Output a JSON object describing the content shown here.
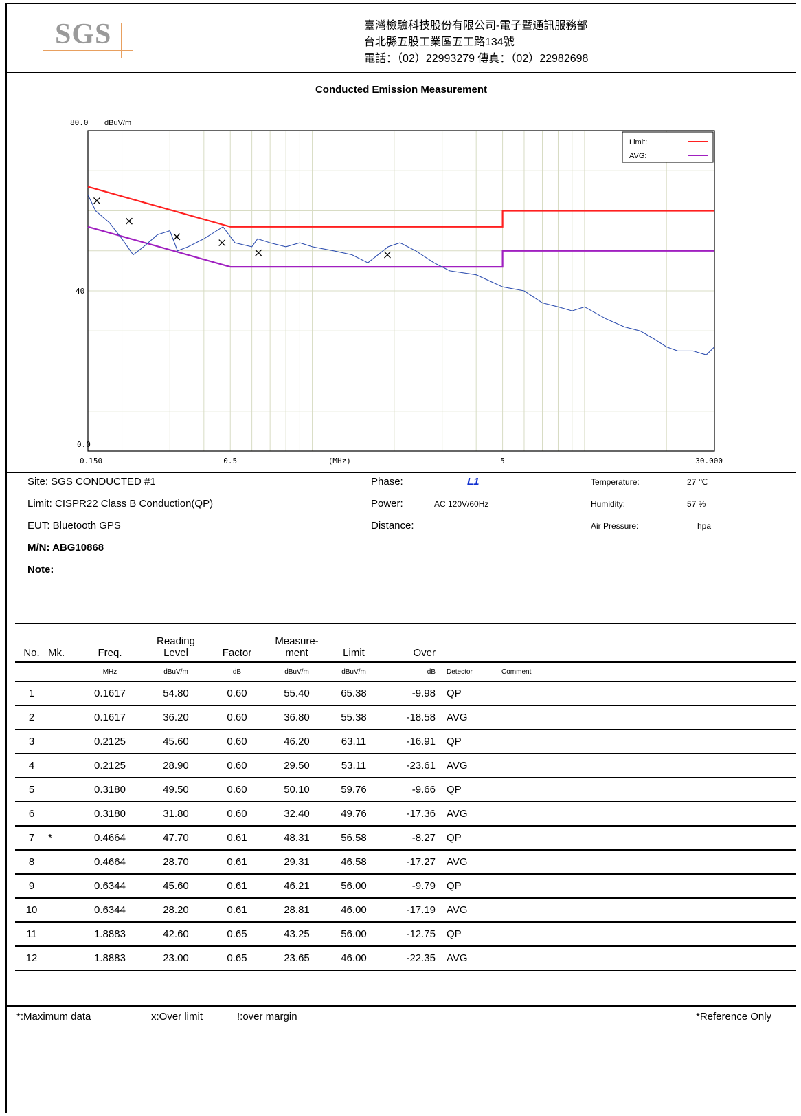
{
  "header": {
    "logo_text": "SGS",
    "company_line1": "臺灣檢驗科技股份有限公司-電子暨通訊服務部",
    "company_line2": "台北縣五股工業區五工路134號",
    "company_line3": "電話：（02）22993279  傳真：（02）22982698"
  },
  "report_title": "Conducted Emission Measurement",
  "chart_data": {
    "type": "line",
    "title": "Conducted Emission Measurement",
    "y_top_label": "80.0",
    "y_unit": "dBuV/m",
    "y_mid_label": "40",
    "y_bottom_label": "0.0",
    "ylim": [
      0,
      80
    ],
    "x_scale": "log",
    "xlim": [
      0.15,
      30
    ],
    "x_tick_labels": [
      "0.150",
      "0.5",
      "(MHz)",
      "5",
      "30.000"
    ],
    "grid": true,
    "legend_position": "top-right",
    "legend": [
      {
        "name": "Limit:",
        "color": "#ff2020"
      },
      {
        "name": "AVG:",
        "color": "#a020c0"
      }
    ],
    "series": [
      {
        "name": "Limit:",
        "color": "#ff2020",
        "x": [
          0.15,
          0.5,
          0.5,
          5,
          5,
          30
        ],
        "y": [
          66.0,
          56.0,
          56.0,
          56.0,
          60.0,
          60.0
        ]
      },
      {
        "name": "AVG:",
        "color": "#a020c0",
        "x": [
          0.15,
          0.5,
          0.5,
          5,
          5,
          30
        ],
        "y": [
          56.0,
          46.0,
          46.0,
          46.0,
          50.0,
          50.0
        ]
      },
      {
        "name": "",
        "color": "#3050b0",
        "x": [
          0.15,
          0.16,
          0.18,
          0.2,
          0.22,
          0.24,
          0.27,
          0.3,
          0.32,
          0.35,
          0.4,
          0.47,
          0.52,
          0.6,
          0.63,
          0.7,
          0.8,
          0.9,
          1.0,
          1.2,
          1.4,
          1.6,
          1.9,
          2.1,
          2.4,
          2.8,
          3.2,
          4.0,
          5.0,
          6.0,
          7.0,
          8.0,
          9.0,
          10.0,
          12.0,
          14.0,
          16.0,
          18.0,
          20.0,
          22.0,
          25.0,
          28.0,
          30.0
        ],
        "y": [
          64,
          60,
          57,
          53,
          49,
          51,
          54,
          55,
          50,
          51,
          53,
          56,
          52,
          51,
          53,
          52,
          51,
          52,
          51,
          50,
          49,
          47,
          51,
          52,
          50,
          47,
          45,
          44,
          41,
          40,
          37,
          36,
          35,
          36,
          33,
          31,
          30,
          28,
          26,
          25,
          25,
          24,
          26
        ]
      }
    ],
    "markers": [
      {
        "x": 0.1617,
        "y": 62.5
      },
      {
        "x": 0.2125,
        "y": 57.4
      },
      {
        "x": 0.318,
        "y": 53.5
      },
      {
        "x": 0.4664,
        "y": 52.0
      },
      {
        "x": 0.6344,
        "y": 49.5
      },
      {
        "x": 1.8883,
        "y": 49.0
      }
    ]
  },
  "info": {
    "site": "Site: SGS CONDUCTED #1",
    "limit": "Limit: CISPR22 Class B Conduction(QP)",
    "eut": "EUT: Bluetooth GPS",
    "mn": "M/N: ABG10868",
    "note": "Note:",
    "phase_label": "Phase:",
    "phase_value": "L1",
    "power_label": "Power:",
    "power_value": "AC 120V/60Hz",
    "distance_label": "Distance:",
    "temperature_label": "Temperature:",
    "temperature_value": "27 ℃",
    "humidity_label": "Humidity:",
    "humidity_value": "57 %",
    "air_pressure_label": "Air Pressure:",
    "air_pressure_value": "hpa"
  },
  "table": {
    "headers": {
      "no": "No.",
      "mk": "Mk.",
      "freq": "Freq.",
      "reading_1": "Reading",
      "reading_2": "Level",
      "factor": "Factor",
      "measure_1": "Measure-",
      "measure_2": "ment",
      "limit": "Limit",
      "over": "Over"
    },
    "units": {
      "freq": "MHz",
      "reading": "dBuV/m",
      "factor": "dB",
      "measure": "dBuV/m",
      "limit": "dBuV/m",
      "over": "dB",
      "detector": "Detector",
      "comment": "Comment"
    },
    "rows": [
      {
        "no": "1",
        "mk": "",
        "freq": "0.1617",
        "reading": "54.80",
        "factor": "0.60",
        "measure": "55.40",
        "limit": "65.38",
        "over": "-9.98",
        "detector": "QP",
        "comment": ""
      },
      {
        "no": "2",
        "mk": "",
        "freq": "0.1617",
        "reading": "36.20",
        "factor": "0.60",
        "measure": "36.80",
        "limit": "55.38",
        "over": "-18.58",
        "detector": "AVG",
        "comment": ""
      },
      {
        "no": "3",
        "mk": "",
        "freq": "0.2125",
        "reading": "45.60",
        "factor": "0.60",
        "measure": "46.20",
        "limit": "63.11",
        "over": "-16.91",
        "detector": "QP",
        "comment": ""
      },
      {
        "no": "4",
        "mk": "",
        "freq": "0.2125",
        "reading": "28.90",
        "factor": "0.60",
        "measure": "29.50",
        "limit": "53.11",
        "over": "-23.61",
        "detector": "AVG",
        "comment": ""
      },
      {
        "no": "5",
        "mk": "",
        "freq": "0.3180",
        "reading": "49.50",
        "factor": "0.60",
        "measure": "50.10",
        "limit": "59.76",
        "over": "-9.66",
        "detector": "QP",
        "comment": ""
      },
      {
        "no": "6",
        "mk": "",
        "freq": "0.3180",
        "reading": "31.80",
        "factor": "0.60",
        "measure": "32.40",
        "limit": "49.76",
        "over": "-17.36",
        "detector": "AVG",
        "comment": ""
      },
      {
        "no": "7",
        "mk": "*",
        "freq": "0.4664",
        "reading": "47.70",
        "factor": "0.61",
        "measure": "48.31",
        "limit": "56.58",
        "over": "-8.27",
        "detector": "QP",
        "comment": ""
      },
      {
        "no": "8",
        "mk": "",
        "freq": "0.4664",
        "reading": "28.70",
        "factor": "0.61",
        "measure": "29.31",
        "limit": "46.58",
        "over": "-17.27",
        "detector": "AVG",
        "comment": ""
      },
      {
        "no": "9",
        "mk": "",
        "freq": "0.6344",
        "reading": "45.60",
        "factor": "0.61",
        "measure": "46.21",
        "limit": "56.00",
        "over": "-9.79",
        "detector": "QP",
        "comment": ""
      },
      {
        "no": "10",
        "mk": "",
        "freq": "0.6344",
        "reading": "28.20",
        "factor": "0.61",
        "measure": "28.81",
        "limit": "46.00",
        "over": "-17.19",
        "detector": "AVG",
        "comment": ""
      },
      {
        "no": "11",
        "mk": "",
        "freq": "1.8883",
        "reading": "42.60",
        "factor": "0.65",
        "measure": "43.25",
        "limit": "56.00",
        "over": "-12.75",
        "detector": "QP",
        "comment": ""
      },
      {
        "no": "12",
        "mk": "",
        "freq": "1.8883",
        "reading": "23.00",
        "factor": "0.65",
        "measure": "23.65",
        "limit": "46.00",
        "over": "-22.35",
        "detector": "AVG",
        "comment": ""
      }
    ]
  },
  "footer": {
    "max_data": "*:Maximum data",
    "over_limit": "x:Over limit",
    "over_margin": "!:over margin",
    "reference": "*Reference Only"
  }
}
